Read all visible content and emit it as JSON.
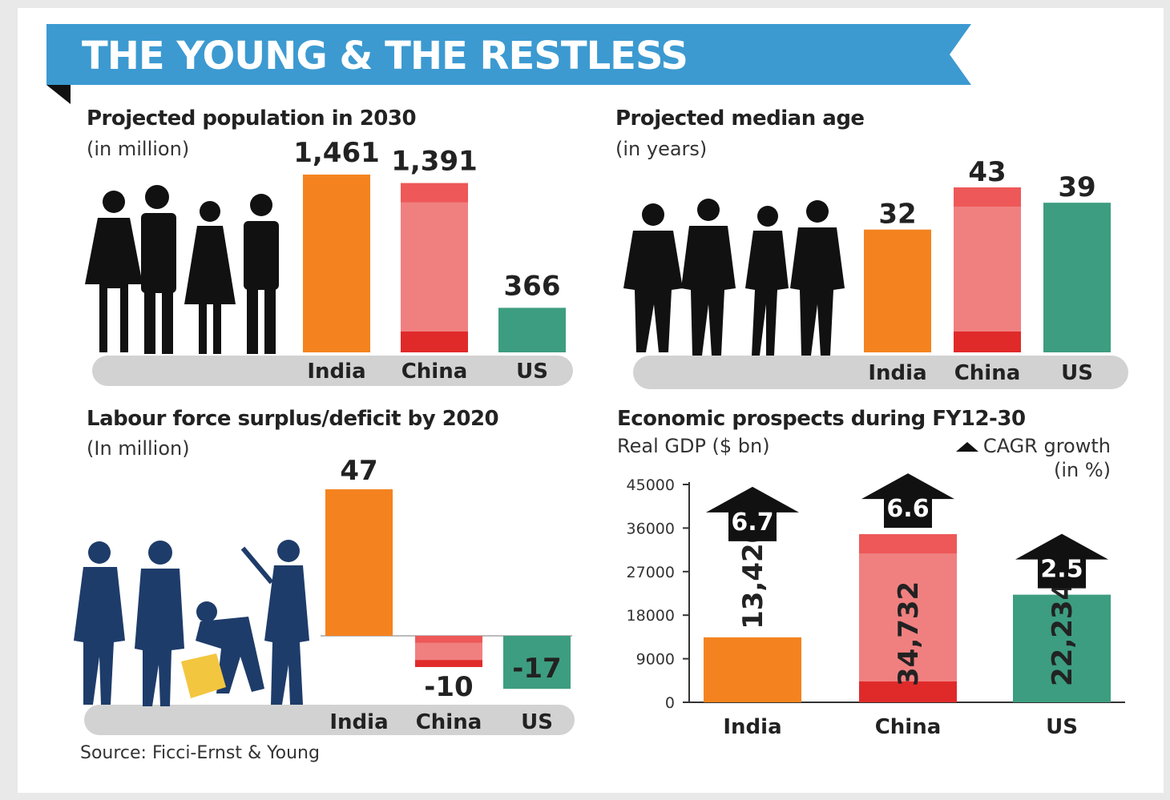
{
  "header": {
    "title": "THE YOUNG & THE RESTLESS"
  },
  "colors": {
    "india": "#f4831f",
    "china": "#f08080",
    "china_dark": "#e02a2a",
    "us": "#3d9d80",
    "banner": "#3c9ad1"
  },
  "source": "Source: Ficci-Ernst & Young",
  "chart_data": [
    {
      "type": "bar",
      "title": "Projected population in 2030",
      "subtitle": "(in million)",
      "categories": [
        "India",
        "China",
        "US"
      ],
      "values": [
        1461,
        1391,
        366
      ],
      "value_labels": [
        "1,461",
        "1,391",
        "366"
      ]
    },
    {
      "type": "bar",
      "title": "Projected median age",
      "subtitle": "(in years)",
      "categories": [
        "India",
        "China",
        "US"
      ],
      "values": [
        32,
        43,
        39
      ],
      "value_labels": [
        "32",
        "43",
        "39"
      ]
    },
    {
      "type": "bar",
      "title": "Labour force surplus/deficit by 2020",
      "subtitle": "(In million)",
      "categories": [
        "India",
        "China",
        "US"
      ],
      "values": [
        47,
        -10,
        -17
      ],
      "value_labels": [
        "47",
        "-10",
        "-17"
      ]
    },
    {
      "type": "bar",
      "title": "Economic prospects during FY12-30",
      "subtitle": "Real GDP ($ bn)",
      "legend": [
        "CAGR growth",
        "(in %)"
      ],
      "categories": [
        "India",
        "China",
        "US"
      ],
      "values": [
        13420,
        34732,
        22234
      ],
      "value_labels": [
        "13,420",
        "34,732",
        "22,234"
      ],
      "cagr": [
        "6.7",
        "6.6",
        "2.5"
      ],
      "ylim": [
        0,
        45000
      ],
      "yticks": [
        "45000",
        "36000",
        "27000",
        "18000",
        "9000",
        "0"
      ]
    }
  ]
}
